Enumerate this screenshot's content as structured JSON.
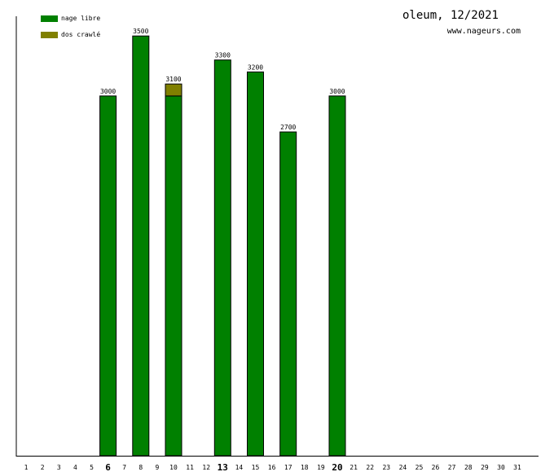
{
  "header": {
    "title": "oleum, 12/2021",
    "site": "www.nageurs.com"
  },
  "legend": [
    {
      "label": "nage libre",
      "color": "#008000"
    },
    {
      "label": "dos crawlé",
      "color": "#808000"
    }
  ],
  "chart_data": {
    "type": "bar",
    "stacked": true,
    "xlabel": "",
    "ylabel": "",
    "ylim": [
      0,
      3800
    ],
    "grid": false,
    "legend_position": "top-left",
    "categories": [
      "1",
      "2",
      "3",
      "4",
      "5",
      "6",
      "7",
      "8",
      "9",
      "10",
      "11",
      "12",
      "13",
      "14",
      "15",
      "16",
      "17",
      "18",
      "19",
      "20",
      "21",
      "22",
      "23",
      "24",
      "25",
      "26",
      "27",
      "28",
      "29",
      "30",
      "31"
    ],
    "highlighted_categories": [
      "6",
      "13",
      "20"
    ],
    "series": [
      {
        "name": "nage libre",
        "color": "#008000",
        "values": [
          0,
          0,
          0,
          0,
          0,
          3000,
          0,
          3500,
          0,
          3000,
          0,
          0,
          3300,
          0,
          3200,
          0,
          2700,
          0,
          0,
          3000,
          0,
          0,
          0,
          0,
          0,
          0,
          0,
          0,
          0,
          0,
          0
        ]
      },
      {
        "name": "dos crawlé",
        "color": "#808000",
        "values": [
          0,
          0,
          0,
          0,
          0,
          0,
          0,
          0,
          0,
          100,
          0,
          0,
          0,
          0,
          0,
          0,
          0,
          0,
          0,
          0,
          0,
          0,
          0,
          0,
          0,
          0,
          0,
          0,
          0,
          0,
          0
        ]
      }
    ],
    "totals": [
      0,
      0,
      0,
      0,
      0,
      3000,
      0,
      3500,
      0,
      3100,
      0,
      0,
      3300,
      0,
      3200,
      0,
      2700,
      0,
      0,
      3000,
      0,
      0,
      0,
      0,
      0,
      0,
      0,
      0,
      0,
      0,
      0
    ]
  }
}
